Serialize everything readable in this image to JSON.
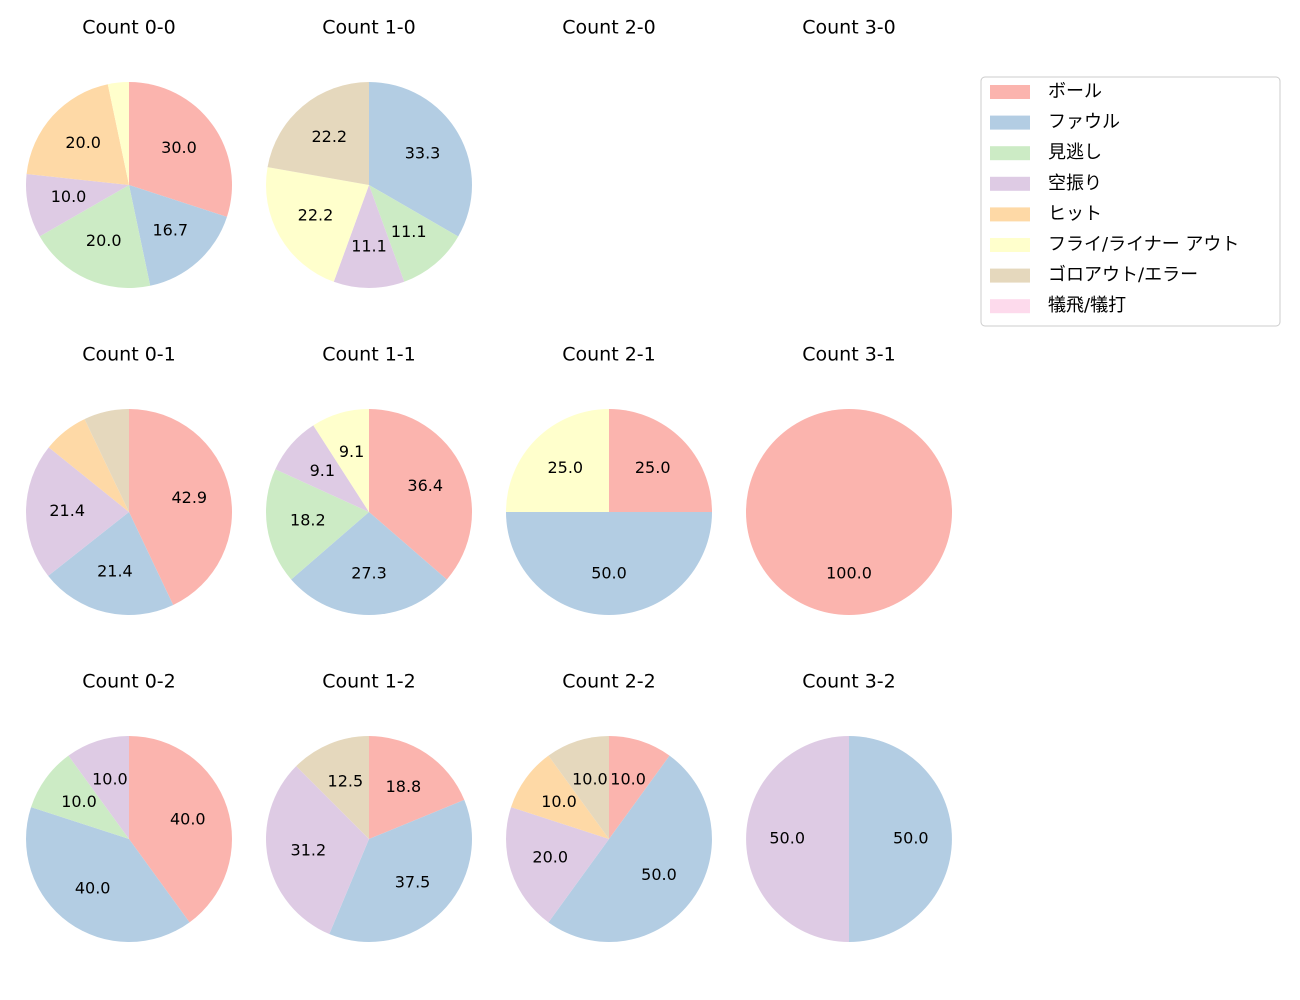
{
  "legend": {
    "labels": [
      "ボール",
      "ファウル",
      "見逃し",
      "空振り",
      "ヒット",
      "フライ/ライナー アウト",
      "ゴロアウト/エラー",
      "犠飛/犠打"
    ],
    "colors": [
      "#fbb4ae",
      "#b3cde3",
      "#ccebc5",
      "#decbe4",
      "#fed9a6",
      "#ffffcc",
      "#e5d8bd",
      "#fddaec"
    ]
  },
  "chart_data": [
    {
      "type": "pie",
      "title": "Count 0-0",
      "categories": [
        "ボール",
        "ファウル",
        "見逃し",
        "空振り",
        "ヒット",
        "フライ/ライナー アウト"
      ],
      "values": [
        30,
        16.7,
        20,
        10,
        20,
        3.3
      ],
      "value_labels": [
        "30.0",
        "16.7",
        "20.0",
        "10.0",
        "20.0",
        null
      ]
    },
    {
      "type": "pie",
      "title": "Count 1-0",
      "categories": [
        "ファウル",
        "見逃し",
        "空振り",
        "フライ/ライナー アウト",
        "ゴロアウト/エラー"
      ],
      "values": [
        33.3,
        11.1,
        11.1,
        22.2,
        22.2
      ],
      "value_labels": [
        "33.3",
        "11.1",
        "11.1",
        "22.2",
        "22.2"
      ]
    },
    {
      "type": "pie",
      "title": "Count 2-0",
      "categories": [],
      "values": [],
      "value_labels": []
    },
    {
      "type": "pie",
      "title": "Count 3-0",
      "categories": [],
      "values": [],
      "value_labels": []
    },
    {
      "type": "pie",
      "title": "Count 0-1",
      "categories": [
        "ボール",
        "ファウル",
        "空振り",
        "ヒット",
        "ゴロアウト/エラー"
      ],
      "values": [
        42.9,
        21.4,
        21.4,
        7.1,
        7.1
      ],
      "value_labels": [
        "42.9",
        "21.4",
        "21.4",
        null,
        null
      ]
    },
    {
      "type": "pie",
      "title": "Count 1-1",
      "categories": [
        "ボール",
        "ファウル",
        "見逃し",
        "空振り",
        "フライ/ライナー アウト"
      ],
      "values": [
        36.4,
        27.3,
        18.2,
        9.1,
        9.1
      ],
      "value_labels": [
        "36.4",
        "27.3",
        "18.2",
        "9.1",
        "9.1"
      ]
    },
    {
      "type": "pie",
      "title": "Count 2-1",
      "categories": [
        "ボール",
        "ファウル",
        "フライ/ライナー アウト"
      ],
      "values": [
        25,
        50,
        25
      ],
      "value_labels": [
        "25.0",
        "50.0",
        "25.0"
      ]
    },
    {
      "type": "pie",
      "title": "Count 3-1",
      "categories": [
        "ボール"
      ],
      "values": [
        100
      ],
      "value_labels": [
        "100.0"
      ]
    },
    {
      "type": "pie",
      "title": "Count 0-2",
      "categories": [
        "ボール",
        "ファウル",
        "見逃し",
        "空振り"
      ],
      "values": [
        40,
        40,
        10,
        10
      ],
      "value_labels": [
        "40.0",
        "40.0",
        "10.0",
        "10.0"
      ]
    },
    {
      "type": "pie",
      "title": "Count 1-2",
      "categories": [
        "ボール",
        "ファウル",
        "空振り",
        "ゴロアウト/エラー"
      ],
      "values": [
        18.8,
        37.5,
        31.2,
        12.5
      ],
      "value_labels": [
        "18.8",
        "37.5",
        "31.2",
        "12.5"
      ]
    },
    {
      "type": "pie",
      "title": "Count 2-2",
      "categories": [
        "ボール",
        "ファウル",
        "空振り",
        "ヒット",
        "ゴロアウト/エラー"
      ],
      "values": [
        10,
        50,
        20,
        10,
        10
      ],
      "value_labels": [
        "10.0",
        "50.0",
        "20.0",
        "10.0",
        "10.0"
      ]
    },
    {
      "type": "pie",
      "title": "Count 3-2",
      "categories": [
        "ファウル",
        "空振り"
      ],
      "values": [
        50,
        50
      ],
      "value_labels": [
        "50.0",
        "50.0"
      ]
    }
  ]
}
